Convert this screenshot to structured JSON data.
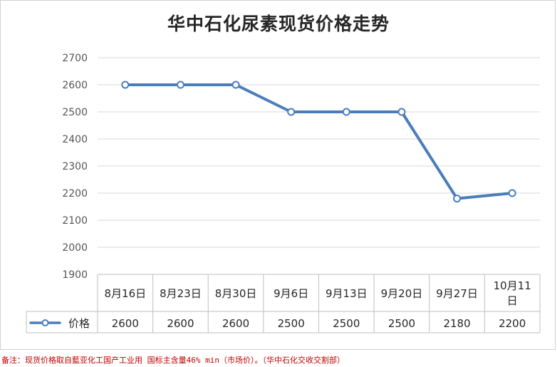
{
  "chart_data": {
    "type": "line",
    "title": "华中石化尿素现货价格走势",
    "categories": [
      [
        "8月16日"
      ],
      [
        "8月23日"
      ],
      [
        "8月30日"
      ],
      [
        "9月6日"
      ],
      [
        "9月13日"
      ],
      [
        "9月20日"
      ],
      [
        "9月27日"
      ],
      [
        "10月11",
        "日"
      ]
    ],
    "series": [
      {
        "name": "价格",
        "values": [
          2600,
          2600,
          2600,
          2500,
          2500,
          2500,
          2180,
          2200
        ],
        "color": "#4a7ebb"
      }
    ],
    "value_labels": [
      "2600",
      "2600",
      "2600",
      "2500",
      "2500",
      "2500",
      "2180",
      "2200"
    ],
    "ylim": [
      1900,
      2700
    ],
    "yticks": [
      "1900",
      "2000",
      "2100",
      "2200",
      "2300",
      "2400",
      "2500",
      "2600",
      "2700"
    ],
    "grid": true,
    "legend": "data-table",
    "xlabel": "",
    "ylabel": ""
  },
  "footnote": "备注：现货价格取自藍亚化工国产工业用 国标主含量46% min（市场价）。（华中石化交收交割部）"
}
